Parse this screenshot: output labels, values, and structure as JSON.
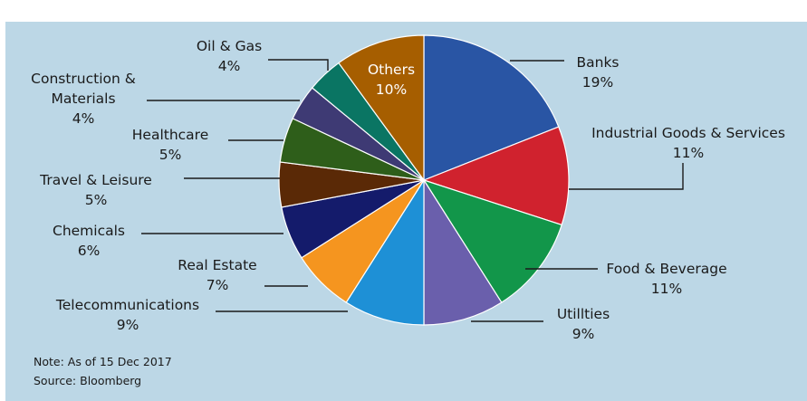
{
  "figure": {
    "title": "",
    "note": "Note: As of 15 Dec 2017",
    "source": "Source: Bloomberg"
  },
  "chart_data": {
    "type": "pie",
    "start_angle_deg": 0,
    "direction": "clockwise",
    "slices": [
      {
        "label": "Banks",
        "value": 19,
        "value_label": "19%",
        "color": "#2955a4"
      },
      {
        "label": "Industrial Goods & Services",
        "value": 11,
        "value_label": "11%",
        "color": "#d0222e"
      },
      {
        "label": "Food & Beverage",
        "value": 11,
        "value_label": "11%",
        "color": "#12964a"
      },
      {
        "label": "Utillties",
        "value": 9,
        "value_label": "9%",
        "color": "#6a5fac"
      },
      {
        "label": "Telecommunications",
        "value": 9,
        "value_label": "9%",
        "color": "#1e90d6"
      },
      {
        "label": "Real Estate",
        "value": 7,
        "value_label": "7%",
        "color": "#f5951f"
      },
      {
        "label": "Chemicals",
        "value": 6,
        "value_label": "6%",
        "color": "#141b6b"
      },
      {
        "label": "Travel & Leisure",
        "value": 5,
        "value_label": "5%",
        "color": "#5a2906"
      },
      {
        "label": "Healthcare",
        "value": 5,
        "value_label": "5%",
        "color": "#2e5e1a"
      },
      {
        "label": "Construction & Materials",
        "value": 4,
        "value_label": "4%",
        "color": "#3e3a74"
      },
      {
        "label": "Oil & Gas",
        "value": 4,
        "value_label": "4%",
        "color": "#0a7563"
      },
      {
        "label": "Others",
        "value": 10,
        "value_label": "10%",
        "color": "#a65e00"
      }
    ]
  }
}
